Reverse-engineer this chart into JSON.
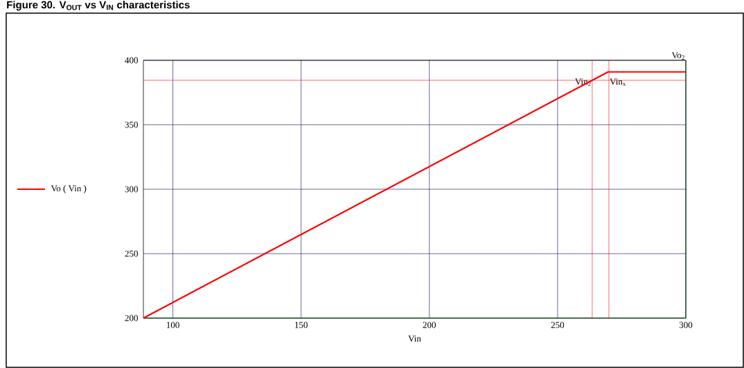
{
  "chart_data": {
    "type": "line",
    "title": "Figure 30. V$_{OUT}$ vs V$_{IN}$ characteristics",
    "xlabel": "Vin",
    "x": [
      88.5,
      269.7,
      300
    ],
    "series": [
      {
        "name": "Vo ( Vin )",
        "color": "#ff0000",
        "values": [
          200,
          391,
          391
        ]
      }
    ],
    "xlim": [
      88.5,
      300
    ],
    "xticks": [
      100,
      150,
      200,
      250,
      300
    ],
    "ylim": [
      200,
      400
    ],
    "yticks": [
      200,
      250,
      300,
      350,
      400
    ],
    "grid": true,
    "legend": "left",
    "marker": "none",
    "line_style": "solid",
    "ref_lines": [
      {
        "axis": "x",
        "value": 263.5,
        "label": "Vin$_{2}$",
        "color": "#ff0000"
      },
      {
        "axis": "x",
        "value": 270,
        "label": "Vin$_{x}$",
        "color": "#ff0000"
      },
      {
        "axis": "y",
        "value": 384.5,
        "label": "Vo$_{2}$",
        "color": "#ff0000"
      }
    ]
  }
}
